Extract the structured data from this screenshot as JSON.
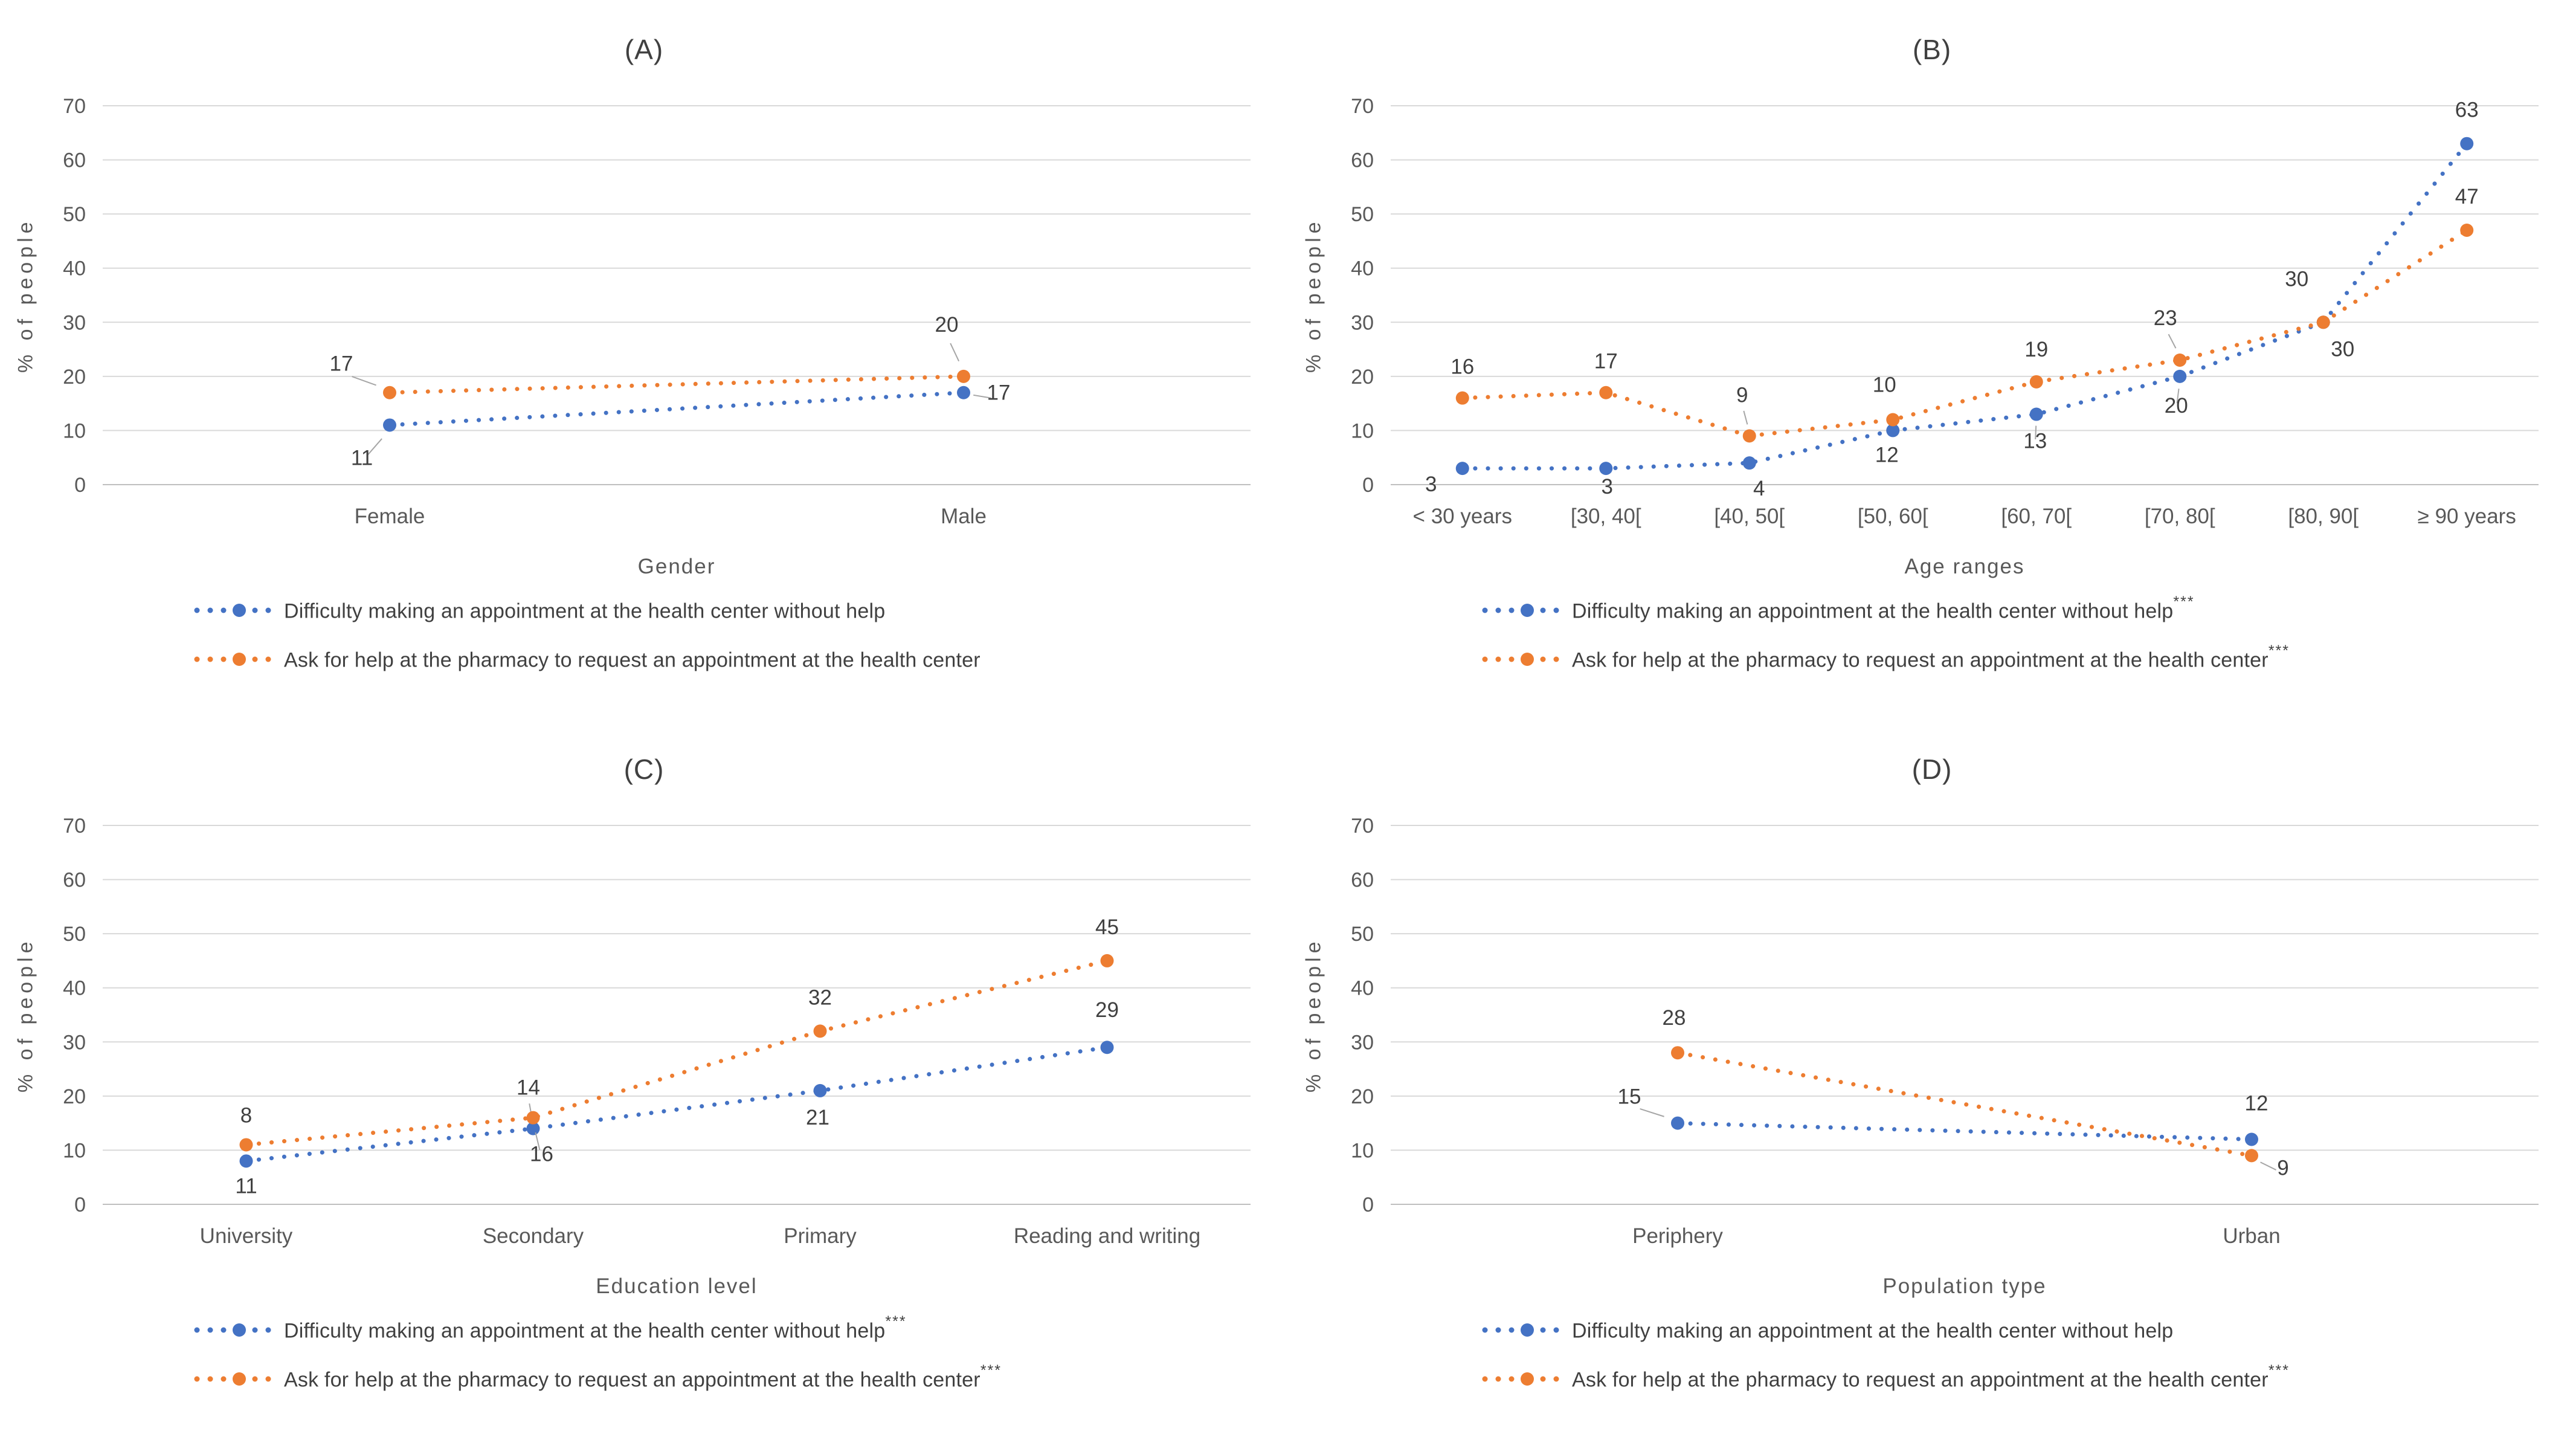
{
  "colors": {
    "blue": "#4472C4",
    "orange": "#ED7D31",
    "grid": "#D9D9D9",
    "axis": "#BFBFBF",
    "tick_text": "#595959",
    "label_text": "#404040",
    "leader": "#A6A6A6"
  },
  "chart_data": [
    {
      "type": "line",
      "title": "(A)",
      "xlabel": "Gender",
      "ylabel": "% of people",
      "ylim": [
        0,
        70
      ],
      "yticks": [
        0,
        10,
        20,
        30,
        40,
        50,
        60,
        70
      ],
      "grid": true,
      "legend_position": "bottom",
      "line_style": "dotted",
      "categories": [
        "Female",
        "Male"
      ],
      "series": [
        {
          "name": "Difficulty making an appointment at the health center without help",
          "significance": "",
          "color_key": "blue",
          "values": [
            11,
            17
          ],
          "point_labels": [
            {
              "text": "11",
              "dx": -46,
              "dy": 66,
              "leader": true
            },
            {
              "text": "17",
              "dx": 58,
              "dy": 12,
              "leader": true
            }
          ]
        },
        {
          "name": "Ask for help at the pharmacy to request an appointment at the health center",
          "significance": "",
          "color_key": "orange",
          "values": [
            17,
            20
          ],
          "point_labels": [
            {
              "text": "17",
              "dx": -80,
              "dy": -36,
              "leader": true
            },
            {
              "text": "20",
              "dx": -28,
              "dy": -74,
              "leader": true
            }
          ]
        }
      ]
    },
    {
      "type": "line",
      "title": "(B)",
      "xlabel": "Age ranges",
      "ylabel": "% of people",
      "ylim": [
        0,
        70
      ],
      "yticks": [
        0,
        10,
        20,
        30,
        40,
        50,
        60,
        70
      ],
      "grid": true,
      "legend_position": "bottom",
      "line_style": "dotted",
      "categories": [
        "< 30 years",
        "[30, 40[",
        "[40, 50[",
        "[50, 60[",
        "[60, 70[",
        "[70, 80[",
        "[80, 90[",
        "≥ 90 years"
      ],
      "series": [
        {
          "name": "Difficulty making an appointment at the health center without help",
          "significance": "***",
          "color_key": "blue",
          "values": [
            3,
            3,
            4,
            10,
            13,
            20,
            30,
            63
          ],
          "point_labels": [
            {
              "text": "3",
              "dx": -52,
              "dy": 38
            },
            {
              "text": "3",
              "dx": 2,
              "dy": 42
            },
            {
              "text": "4",
              "dx": 16,
              "dy": 54
            },
            {
              "text": "10",
              "dx": -14,
              "dy": -64
            },
            {
              "text": "13",
              "dx": -2,
              "dy": 56,
              "leader": true
            },
            {
              "text": "20",
              "dx": -6,
              "dy": 60,
              "leader": true
            },
            {
              "text": "30",
              "dx": -44,
              "dy": -60
            },
            {
              "text": "63",
              "dx": 0,
              "dy": -44
            }
          ]
        },
        {
          "name": "Ask for help at the pharmacy to request an appointment at the health center",
          "significance": "***",
          "color_key": "orange",
          "values": [
            16,
            17,
            9,
            12,
            19,
            23,
            30,
            47
          ],
          "point_labels": [
            {
              "text": "16",
              "dx": 0,
              "dy": -40
            },
            {
              "text": "17",
              "dx": 0,
              "dy": -40
            },
            {
              "text": "9",
              "dx": -12,
              "dy": -56,
              "leader": true
            },
            {
              "text": "12",
              "dx": -10,
              "dy": 70
            },
            {
              "text": "19",
              "dx": 0,
              "dy": -42
            },
            {
              "text": "23",
              "dx": -24,
              "dy": -58,
              "leader": true
            },
            {
              "text": "30",
              "dx": 32,
              "dy": 56
            },
            {
              "text": "47",
              "dx": 0,
              "dy": -44
            }
          ]
        }
      ]
    },
    {
      "type": "line",
      "title": "(C)",
      "xlabel": "Education level",
      "ylabel": "% of people",
      "ylim": [
        0,
        70
      ],
      "yticks": [
        0,
        10,
        20,
        30,
        40,
        50,
        60,
        70
      ],
      "grid": true,
      "legend_position": "bottom",
      "line_style": "dotted",
      "categories": [
        "University",
        "Secondary",
        "Primary",
        "Reading and writing"
      ],
      "series": [
        {
          "name": "Difficulty making an appointment at the health center without help",
          "significance": "***",
          "color_key": "blue",
          "values": [
            8,
            14,
            21,
            29
          ],
          "point_labels": [
            {
              "text": "8",
              "dx": 0,
              "dy": -64
            },
            {
              "text": "14",
              "dx": -8,
              "dy": -56,
              "leader": true
            },
            {
              "text": "21",
              "dx": -4,
              "dy": 56
            },
            {
              "text": "29",
              "dx": 0,
              "dy": -50
            }
          ]
        },
        {
          "name": "Ask for help at the pharmacy to request an appointment at the health center",
          "significance": "***",
          "color_key": "orange",
          "values": [
            11,
            16,
            32,
            45
          ],
          "point_labels": [
            {
              "text": "11",
              "dx": 0,
              "dy": 80
            },
            {
              "text": "16",
              "dx": 14,
              "dy": 72,
              "leader": true
            },
            {
              "text": "32",
              "dx": 0,
              "dy": -44
            },
            {
              "text": "45",
              "dx": 0,
              "dy": -44
            }
          ]
        }
      ]
    },
    {
      "type": "line",
      "title": "(D)",
      "xlabel": "Population type",
      "ylabel": "% of people",
      "ylim": [
        0,
        70
      ],
      "yticks": [
        0,
        10,
        20,
        30,
        40,
        50,
        60,
        70
      ],
      "grid": true,
      "legend_position": "bottom",
      "line_style": "dotted",
      "categories": [
        "Periphery",
        "Urban"
      ],
      "series": [
        {
          "name": "Difficulty making an appointment at the health center without help",
          "significance": "",
          "color_key": "blue",
          "values": [
            15,
            12
          ],
          "point_labels": [
            {
              "text": "15",
              "dx": -80,
              "dy": -32,
              "leader": true
            },
            {
              "text": "12",
              "dx": 8,
              "dy": -48
            }
          ]
        },
        {
          "name": "Ask for help at the pharmacy to request an appointment at the health center",
          "significance": "***",
          "color_key": "orange",
          "values": [
            28,
            9
          ],
          "point_labels": [
            {
              "text": "28",
              "dx": -6,
              "dy": -46
            },
            {
              "text": "9",
              "dx": 52,
              "dy": 32,
              "leader": true
            }
          ]
        }
      ]
    }
  ]
}
